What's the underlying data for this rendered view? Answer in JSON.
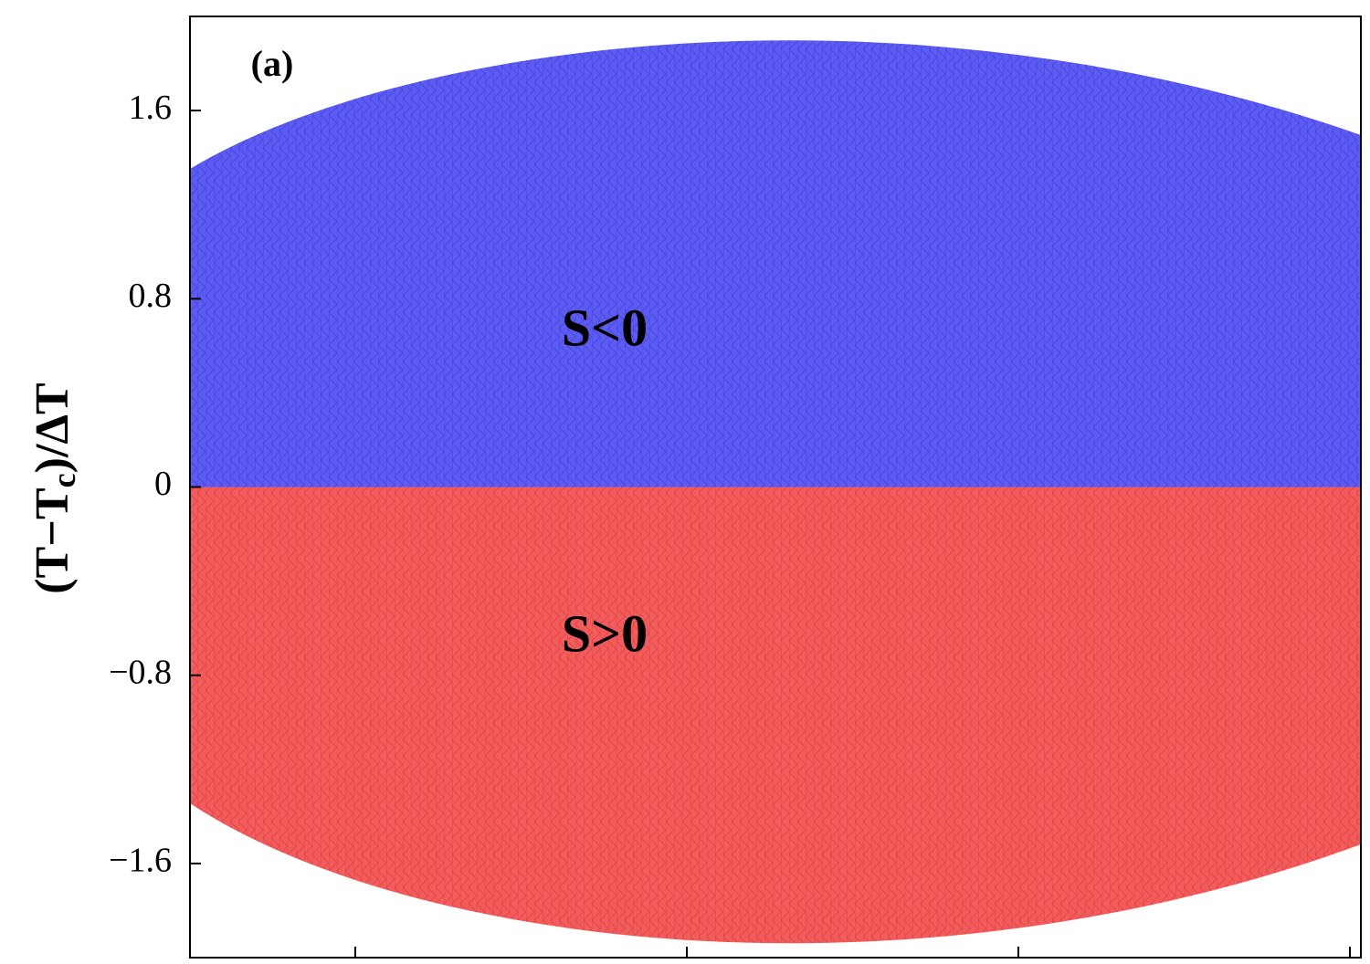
{
  "chart_data": {
    "type": "region",
    "panel_label": "(a)",
    "y_label": {
      "main": "(T−T",
      "sub": "c",
      "end": ")/ΔT"
    },
    "ylim": [
      -2,
      2
    ],
    "yticks": [
      {
        "value": -1.6,
        "label": "−1.6"
      },
      {
        "value": -0.8,
        "label": "−0.8"
      },
      0,
      0.8,
      1.6
    ],
    "regions": [
      {
        "label": "S<0",
        "color": "#5c5cf2",
        "mesh": "#2020c8",
        "side": "above"
      },
      {
        "label": "S>0",
        "color": "#f35c5c",
        "mesh": "#c82020",
        "side": "below"
      }
    ]
  }
}
